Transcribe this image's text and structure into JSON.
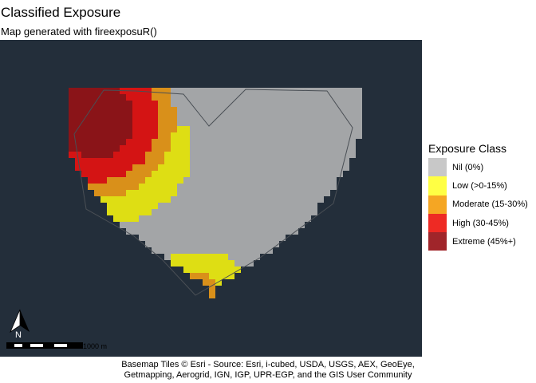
{
  "header": {
    "title": "Classified Exposure",
    "subtitle": "Map generated with fireexposuR()"
  },
  "legend": {
    "title": "Exposure Class",
    "items": [
      {
        "label": "Nil (0%)",
        "color": "#c8c8c8"
      },
      {
        "label": "Low (>0-15%)",
        "color": "#ffff44"
      },
      {
        "label": "Moderate (15-30%)",
        "color": "#f5a623"
      },
      {
        "label": "High (30-45%)",
        "color": "#ee2a24"
      },
      {
        "label": "Extreme (45%+)",
        "color": "#a0252a"
      }
    ]
  },
  "map": {
    "background_color": "#232e3a",
    "class_colors": {
      "nil": "#a3a5a7",
      "low": "#dede14",
      "moderate": "#d9901a",
      "high": "#d41414",
      "extreme": "#8a1418"
    },
    "north_label": "N",
    "scale_label": "1000 m"
  },
  "attribution": {
    "line1": "Basemap Tiles © Esri - Source: Esri, i-cubed, USDA, USGS, AEX, GeoEye,",
    "line2": "Getmapping, Aerogrid, IGN, IGP, UPR-EGP, and the GIS User Community"
  }
}
